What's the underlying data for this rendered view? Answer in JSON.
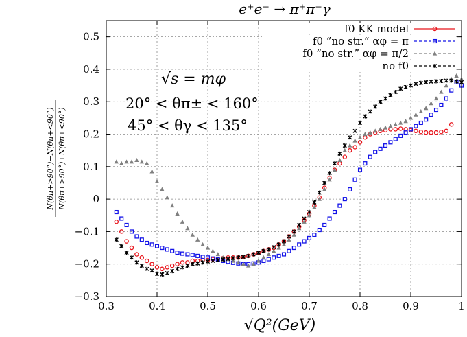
{
  "chart_data": {
    "type": "scatter",
    "title": "e⁺e⁻ → π⁺π⁻γ",
    "xlabel": "√Q²(GeV)",
    "ylabel": "N(θπ+>90°)−N(θπ+<90°) / N(θπ+>90°)+N(θπ+<90°)",
    "ylabel_num": "N(θπ+>90°)−N(θπ+<90°)",
    "ylabel_den": "N(θπ+>90°)+N(θπ+<90°)",
    "xlim": [
      0.3,
      1.0
    ],
    "ylim": [
      -0.3,
      0.55
    ],
    "xticks": [
      0.3,
      0.4,
      0.5,
      0.6,
      0.7,
      0.8,
      0.9,
      1.0
    ],
    "yticks": [
      -0.3,
      -0.2,
      -0.1,
      0,
      0.1,
      0.2,
      0.3,
      0.4,
      0.5
    ],
    "xtick_labels": [
      "0.3",
      "0.4",
      "0.5",
      "0.6",
      "0.7",
      "0.8",
      "0.9",
      "1"
    ],
    "ytick_labels": [
      "−0.3",
      "−0.2",
      "−0.1",
      "0",
      "0.1",
      "0.2",
      "0.3",
      "0.4",
      "0.5"
    ],
    "grid": true,
    "legend_position": "top-right",
    "annotations": [
      "√s = mφ",
      "20° < θπ± < 160°",
      "45° < θγ < 135°"
    ],
    "series": [
      {
        "name": "f0 KK model",
        "color": "#e8141b",
        "marker": "circle",
        "x": [
          0.32,
          0.33,
          0.34,
          0.35,
          0.36,
          0.37,
          0.38,
          0.39,
          0.4,
          0.41,
          0.42,
          0.43,
          0.44,
          0.45,
          0.46,
          0.47,
          0.48,
          0.49,
          0.5,
          0.51,
          0.52,
          0.53,
          0.54,
          0.55,
          0.56,
          0.57,
          0.58,
          0.59,
          0.6,
          0.61,
          0.62,
          0.63,
          0.64,
          0.65,
          0.66,
          0.67,
          0.68,
          0.69,
          0.7,
          0.71,
          0.72,
          0.73,
          0.74,
          0.75,
          0.76,
          0.77,
          0.78,
          0.79,
          0.8,
          0.81,
          0.82,
          0.83,
          0.84,
          0.85,
          0.86,
          0.87,
          0.88,
          0.89,
          0.9,
          0.91,
          0.92,
          0.93,
          0.94,
          0.95,
          0.96,
          0.97,
          0.98
        ],
        "y": [
          -0.07,
          -0.1,
          -0.13,
          -0.15,
          -0.17,
          -0.18,
          -0.19,
          -0.2,
          -0.21,
          -0.215,
          -0.21,
          -0.205,
          -0.2,
          -0.195,
          -0.195,
          -0.19,
          -0.19,
          -0.188,
          -0.188,
          -0.185,
          -0.185,
          -0.182,
          -0.18,
          -0.18,
          -0.18,
          -0.178,
          -0.175,
          -0.17,
          -0.165,
          -0.16,
          -0.155,
          -0.15,
          -0.14,
          -0.13,
          -0.115,
          -0.1,
          -0.085,
          -0.065,
          -0.045,
          -0.02,
          0.005,
          0.035,
          0.065,
          0.09,
          0.11,
          0.13,
          0.15,
          0.16,
          0.175,
          0.19,
          0.2,
          0.205,
          0.21,
          0.212,
          0.215,
          0.215,
          0.217,
          0.215,
          0.212,
          0.21,
          0.207,
          0.205,
          0.205,
          0.205,
          0.207,
          0.21,
          0.23
        ]
      },
      {
        "name": "f0 ”no str.” αφ = π",
        "color": "#1414e8",
        "marker": "square",
        "x": [
          0.32,
          0.33,
          0.34,
          0.35,
          0.36,
          0.37,
          0.38,
          0.39,
          0.4,
          0.41,
          0.42,
          0.43,
          0.44,
          0.45,
          0.46,
          0.47,
          0.48,
          0.49,
          0.5,
          0.51,
          0.52,
          0.53,
          0.54,
          0.55,
          0.56,
          0.57,
          0.58,
          0.59,
          0.6,
          0.61,
          0.62,
          0.63,
          0.64,
          0.65,
          0.66,
          0.67,
          0.68,
          0.69,
          0.7,
          0.71,
          0.72,
          0.73,
          0.74,
          0.75,
          0.76,
          0.77,
          0.78,
          0.79,
          0.8,
          0.81,
          0.82,
          0.83,
          0.84,
          0.85,
          0.86,
          0.87,
          0.88,
          0.89,
          0.9,
          0.91,
          0.92,
          0.93,
          0.94,
          0.95,
          0.96,
          0.97,
          0.98,
          0.99,
          1.0
        ],
        "y": [
          -0.04,
          -0.06,
          -0.08,
          -0.1,
          -0.115,
          -0.125,
          -0.135,
          -0.14,
          -0.145,
          -0.15,
          -0.155,
          -0.16,
          -0.165,
          -0.168,
          -0.17,
          -0.172,
          -0.175,
          -0.178,
          -0.18,
          -0.183,
          -0.186,
          -0.19,
          -0.193,
          -0.196,
          -0.198,
          -0.2,
          -0.2,
          -0.198,
          -0.195,
          -0.19,
          -0.185,
          -0.18,
          -0.175,
          -0.17,
          -0.16,
          -0.15,
          -0.14,
          -0.13,
          -0.12,
          -0.11,
          -0.095,
          -0.08,
          -0.06,
          -0.04,
          -0.02,
          0.0,
          0.03,
          0.06,
          0.09,
          0.11,
          0.13,
          0.145,
          0.155,
          0.165,
          0.175,
          0.185,
          0.195,
          0.205,
          0.215,
          0.225,
          0.235,
          0.245,
          0.26,
          0.275,
          0.29,
          0.31,
          0.335,
          0.36,
          0.35
        ]
      },
      {
        "name": "f0 ”no str.” αφ = π/2",
        "color": "#808080",
        "marker": "triangle",
        "x": [
          0.32,
          0.33,
          0.34,
          0.35,
          0.36,
          0.37,
          0.38,
          0.39,
          0.4,
          0.41,
          0.42,
          0.43,
          0.44,
          0.45,
          0.46,
          0.47,
          0.48,
          0.49,
          0.5,
          0.51,
          0.52,
          0.53,
          0.54,
          0.55,
          0.56,
          0.57,
          0.58,
          0.59,
          0.6,
          0.61,
          0.62,
          0.63,
          0.64,
          0.65,
          0.66,
          0.67,
          0.68,
          0.69,
          0.7,
          0.71,
          0.72,
          0.73,
          0.74,
          0.75,
          0.76,
          0.77,
          0.78,
          0.79,
          0.8,
          0.81,
          0.82,
          0.83,
          0.84,
          0.85,
          0.86,
          0.87,
          0.88,
          0.89,
          0.9,
          0.91,
          0.92,
          0.93,
          0.94,
          0.95,
          0.96,
          0.97,
          0.98,
          0.99,
          1.0
        ],
        "y": [
          0.115,
          0.11,
          0.115,
          0.115,
          0.12,
          0.115,
          0.11,
          0.085,
          0.055,
          0.03,
          0.005,
          -0.02,
          -0.045,
          -0.07,
          -0.09,
          -0.11,
          -0.125,
          -0.14,
          -0.15,
          -0.16,
          -0.17,
          -0.18,
          -0.185,
          -0.19,
          -0.195,
          -0.2,
          -0.205,
          -0.2,
          -0.19,
          -0.18,
          -0.17,
          -0.16,
          -0.15,
          -0.14,
          -0.125,
          -0.11,
          -0.09,
          -0.07,
          -0.05,
          -0.025,
          0.0,
          0.03,
          0.06,
          0.09,
          0.12,
          0.15,
          0.165,
          0.18,
          0.19,
          0.2,
          0.205,
          0.21,
          0.215,
          0.22,
          0.225,
          0.23,
          0.235,
          0.24,
          0.25,
          0.26,
          0.27,
          0.28,
          0.295,
          0.31,
          0.33,
          0.35,
          0.37,
          0.38,
          0.37
        ]
      },
      {
        "name": "no f0",
        "color": "#000000",
        "marker": "star",
        "x": [
          0.32,
          0.33,
          0.34,
          0.35,
          0.36,
          0.37,
          0.38,
          0.39,
          0.4,
          0.41,
          0.42,
          0.43,
          0.44,
          0.45,
          0.46,
          0.47,
          0.48,
          0.49,
          0.5,
          0.51,
          0.52,
          0.53,
          0.54,
          0.55,
          0.56,
          0.57,
          0.58,
          0.59,
          0.6,
          0.61,
          0.62,
          0.63,
          0.64,
          0.65,
          0.66,
          0.67,
          0.68,
          0.69,
          0.7,
          0.71,
          0.72,
          0.73,
          0.74,
          0.75,
          0.76,
          0.77,
          0.78,
          0.79,
          0.8,
          0.81,
          0.82,
          0.83,
          0.84,
          0.85,
          0.86,
          0.87,
          0.88,
          0.89,
          0.9,
          0.91,
          0.92,
          0.93,
          0.94,
          0.95,
          0.96,
          0.97,
          0.98,
          0.99,
          1.0
        ],
        "y": [
          -0.125,
          -0.145,
          -0.165,
          -0.18,
          -0.195,
          -0.205,
          -0.215,
          -0.22,
          -0.23,
          -0.232,
          -0.228,
          -0.222,
          -0.215,
          -0.21,
          -0.205,
          -0.2,
          -0.198,
          -0.195,
          -0.192,
          -0.19,
          -0.188,
          -0.186,
          -0.184,
          -0.182,
          -0.18,
          -0.178,
          -0.175,
          -0.17,
          -0.165,
          -0.16,
          -0.155,
          -0.148,
          -0.14,
          -0.13,
          -0.115,
          -0.1,
          -0.08,
          -0.06,
          -0.04,
          -0.01,
          0.02,
          0.05,
          0.08,
          0.11,
          0.14,
          0.165,
          0.19,
          0.21,
          0.235,
          0.255,
          0.27,
          0.285,
          0.3,
          0.31,
          0.32,
          0.33,
          0.34,
          0.345,
          0.35,
          0.355,
          0.358,
          0.36,
          0.362,
          0.363,
          0.364,
          0.365,
          0.365,
          0.363,
          0.36
        ]
      }
    ]
  }
}
